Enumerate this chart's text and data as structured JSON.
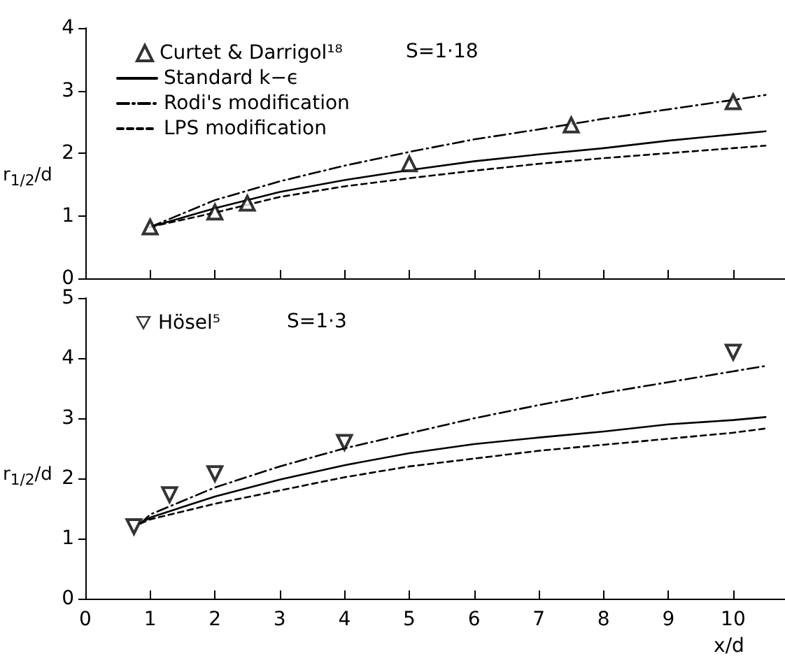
{
  "chart_data": [
    {
      "type": "line",
      "xlim": [
        0,
        10.8
      ],
      "xticks": [
        0,
        1,
        2,
        3,
        4,
        5,
        6,
        7,
        8,
        9,
        10
      ],
      "ylim": [
        0,
        4
      ],
      "yticks": [
        0,
        1,
        2,
        3,
        4
      ],
      "ylabel": "r$_{1/2}$/d",
      "tick_labels": "y",
      "legend": "top left",
      "grid": false,
      "annotations": [
        "S=1·18"
      ],
      "series": [
        {
          "name": "Curtet & Darrigol¹⁸",
          "type": "scatter",
          "marker": "triangle",
          "color": "#000000",
          "x": [
            1,
            2,
            2.5,
            5,
            7.5,
            10
          ],
          "values": [
            0.82,
            1.06,
            1.2,
            1.83,
            2.45,
            2.82
          ]
        },
        {
          "name": "Standard k−ϵ",
          "line_style": "solid",
          "color": "#000000",
          "x": [
            1,
            2,
            3,
            4,
            5,
            6,
            7,
            8,
            9,
            10,
            10.5
          ],
          "values": [
            0.82,
            1.12,
            1.38,
            1.57,
            1.73,
            1.87,
            1.98,
            2.08,
            2.2,
            2.3,
            2.35
          ]
        },
        {
          "name": "Rodi's modification",
          "line_style": "dashdot",
          "color": "#000000",
          "x": [
            1,
            2,
            3,
            4,
            5,
            6,
            7,
            8,
            9,
            10,
            10.5
          ],
          "values": [
            0.82,
            1.25,
            1.55,
            1.8,
            2.02,
            2.22,
            2.38,
            2.55,
            2.7,
            2.85,
            2.93
          ]
        },
        {
          "name": "LPS modification",
          "line_style": "dashed",
          "color": "#000000",
          "x": [
            1,
            2,
            3,
            4,
            5,
            6,
            7,
            8,
            9,
            10,
            10.5
          ],
          "values": [
            0.82,
            1.05,
            1.3,
            1.47,
            1.6,
            1.72,
            1.83,
            1.92,
            2.0,
            2.08,
            2.12
          ]
        }
      ]
    },
    {
      "type": "line",
      "xlim": [
        0,
        10.8
      ],
      "xticks": [
        0,
        1,
        2,
        3,
        4,
        5,
        6,
        7,
        8,
        9,
        10
      ],
      "ylim": [
        0,
        5
      ],
      "yticks": [
        0,
        1,
        2,
        3,
        4,
        5
      ],
      "xlabel": "x/d",
      "ylabel": "r$_{1/2}$/d",
      "legend": "top left",
      "grid": false,
      "annotations": [
        "S=1·3"
      ],
      "series": [
        {
          "name": "Hösel⁵",
          "type": "scatter",
          "marker": "triangle_down",
          "color": "#000000",
          "x": [
            0.75,
            1.3,
            2,
            4,
            10
          ],
          "values": [
            1.2,
            1.73,
            2.08,
            2.6,
            4.1
          ]
        },
        {
          "line_style": "solid",
          "color": "#000000",
          "x": [
            0.85,
            1,
            2,
            3,
            4,
            5,
            6,
            7,
            8,
            9,
            10,
            10.5
          ],
          "values": [
            1.25,
            1.35,
            1.7,
            1.98,
            2.22,
            2.42,
            2.57,
            2.68,
            2.78,
            2.9,
            2.97,
            3.02
          ]
        },
        {
          "line_style": "dashdot",
          "color": "#000000",
          "x": [
            0.85,
            1,
            2,
            3,
            4,
            5,
            6,
            7,
            8,
            9,
            10,
            10.5
          ],
          "values": [
            1.25,
            1.4,
            1.85,
            2.2,
            2.5,
            2.75,
            3.0,
            3.22,
            3.42,
            3.6,
            3.78,
            3.87
          ]
        },
        {
          "line_style": "dashed",
          "color": "#000000",
          "x": [
            0.85,
            1,
            2,
            3,
            4,
            5,
            6,
            7,
            8,
            9,
            10,
            10.5
          ],
          "values": [
            1.25,
            1.32,
            1.58,
            1.8,
            2.02,
            2.2,
            2.33,
            2.46,
            2.56,
            2.66,
            2.76,
            2.83
          ]
        }
      ]
    }
  ]
}
